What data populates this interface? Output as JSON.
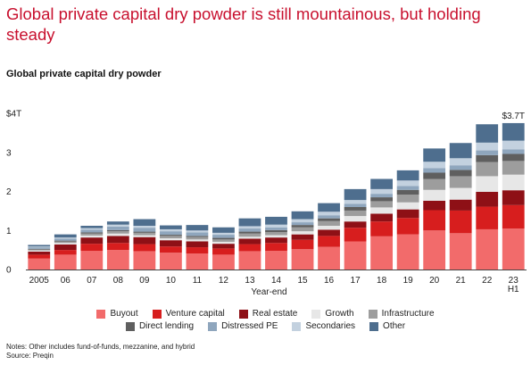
{
  "headline": "Global private capital dry powder is still mountainous, but holding steady",
  "chart_data": {
    "type": "bar",
    "stacked": true,
    "title": "Global private capital dry powder",
    "xlabel": "Year-end",
    "ylabel": "",
    "ylim": [
      0,
      4
    ],
    "y_ticks": [
      "0",
      "1",
      "2",
      "3",
      "$4T"
    ],
    "categories": [
      "2005",
      "06",
      "07",
      "08",
      "09",
      "10",
      "11",
      "12",
      "13",
      "14",
      "15",
      "16",
      "17",
      "18",
      "19",
      "20",
      "21",
      "22",
      "23\nH1"
    ],
    "series": [
      {
        "name": "Buyout",
        "color": "#f26b6b",
        "values": [
          0.28,
          0.38,
          0.48,
          0.5,
          0.47,
          0.43,
          0.41,
          0.38,
          0.47,
          0.48,
          0.52,
          0.58,
          0.72,
          0.85,
          0.9,
          1.0,
          0.93,
          1.03,
          1.05
        ]
      },
      {
        "name": "Venture capital",
        "color": "#d71e1e",
        "values": [
          0.1,
          0.12,
          0.18,
          0.18,
          0.18,
          0.16,
          0.16,
          0.16,
          0.18,
          0.2,
          0.24,
          0.28,
          0.35,
          0.38,
          0.42,
          0.52,
          0.58,
          0.58,
          0.6
        ]
      },
      {
        "name": "Real estate",
        "color": "#8e1016",
        "values": [
          0.08,
          0.14,
          0.16,
          0.18,
          0.18,
          0.16,
          0.15,
          0.12,
          0.14,
          0.14,
          0.14,
          0.16,
          0.16,
          0.2,
          0.22,
          0.24,
          0.28,
          0.38,
          0.38
        ]
      },
      {
        "name": "Growth",
        "color": "#e7e7e7",
        "values": [
          0.03,
          0.04,
          0.05,
          0.06,
          0.05,
          0.05,
          0.05,
          0.05,
          0.05,
          0.06,
          0.08,
          0.1,
          0.14,
          0.16,
          0.18,
          0.28,
          0.3,
          0.4,
          0.4
        ]
      },
      {
        "name": "Infrastructure",
        "color": "#9d9d9d",
        "values": [
          0.02,
          0.04,
          0.05,
          0.06,
          0.06,
          0.06,
          0.06,
          0.06,
          0.08,
          0.08,
          0.1,
          0.12,
          0.14,
          0.16,
          0.2,
          0.28,
          0.3,
          0.36,
          0.35
        ]
      },
      {
        "name": "Direct lending",
        "color": "#5f5f5f",
        "values": [
          0.02,
          0.02,
          0.03,
          0.03,
          0.03,
          0.03,
          0.03,
          0.04,
          0.05,
          0.05,
          0.06,
          0.07,
          0.09,
          0.1,
          0.12,
          0.16,
          0.16,
          0.18,
          0.18
        ]
      },
      {
        "name": "Distressed PE",
        "color": "#8fa6bd",
        "values": [
          0.04,
          0.05,
          0.07,
          0.09,
          0.1,
          0.09,
          0.09,
          0.08,
          0.08,
          0.07,
          0.07,
          0.08,
          0.08,
          0.09,
          0.1,
          0.12,
          0.12,
          0.12,
          0.12
        ]
      },
      {
        "name": "Secondaries",
        "color": "#c3d1df",
        "values": [
          0.02,
          0.03,
          0.04,
          0.05,
          0.05,
          0.05,
          0.05,
          0.05,
          0.06,
          0.07,
          0.08,
          0.09,
          0.1,
          0.12,
          0.14,
          0.16,
          0.18,
          0.2,
          0.22
        ]
      },
      {
        "name": "Other",
        "color": "#4e6e8e",
        "values": [
          0.04,
          0.08,
          0.06,
          0.08,
          0.17,
          0.1,
          0.14,
          0.14,
          0.2,
          0.2,
          0.2,
          0.22,
          0.28,
          0.26,
          0.26,
          0.34,
          0.39,
          0.47,
          0.45
        ]
      }
    ],
    "data_labels": [
      {
        "category_index": 18,
        "text": "$3.7T"
      }
    ],
    "grid": false,
    "legend_position": "bottom"
  },
  "notes": "Notes: Other includes fund-of-funds, mezzanine, and hybrid",
  "source": "Source: Preqin"
}
